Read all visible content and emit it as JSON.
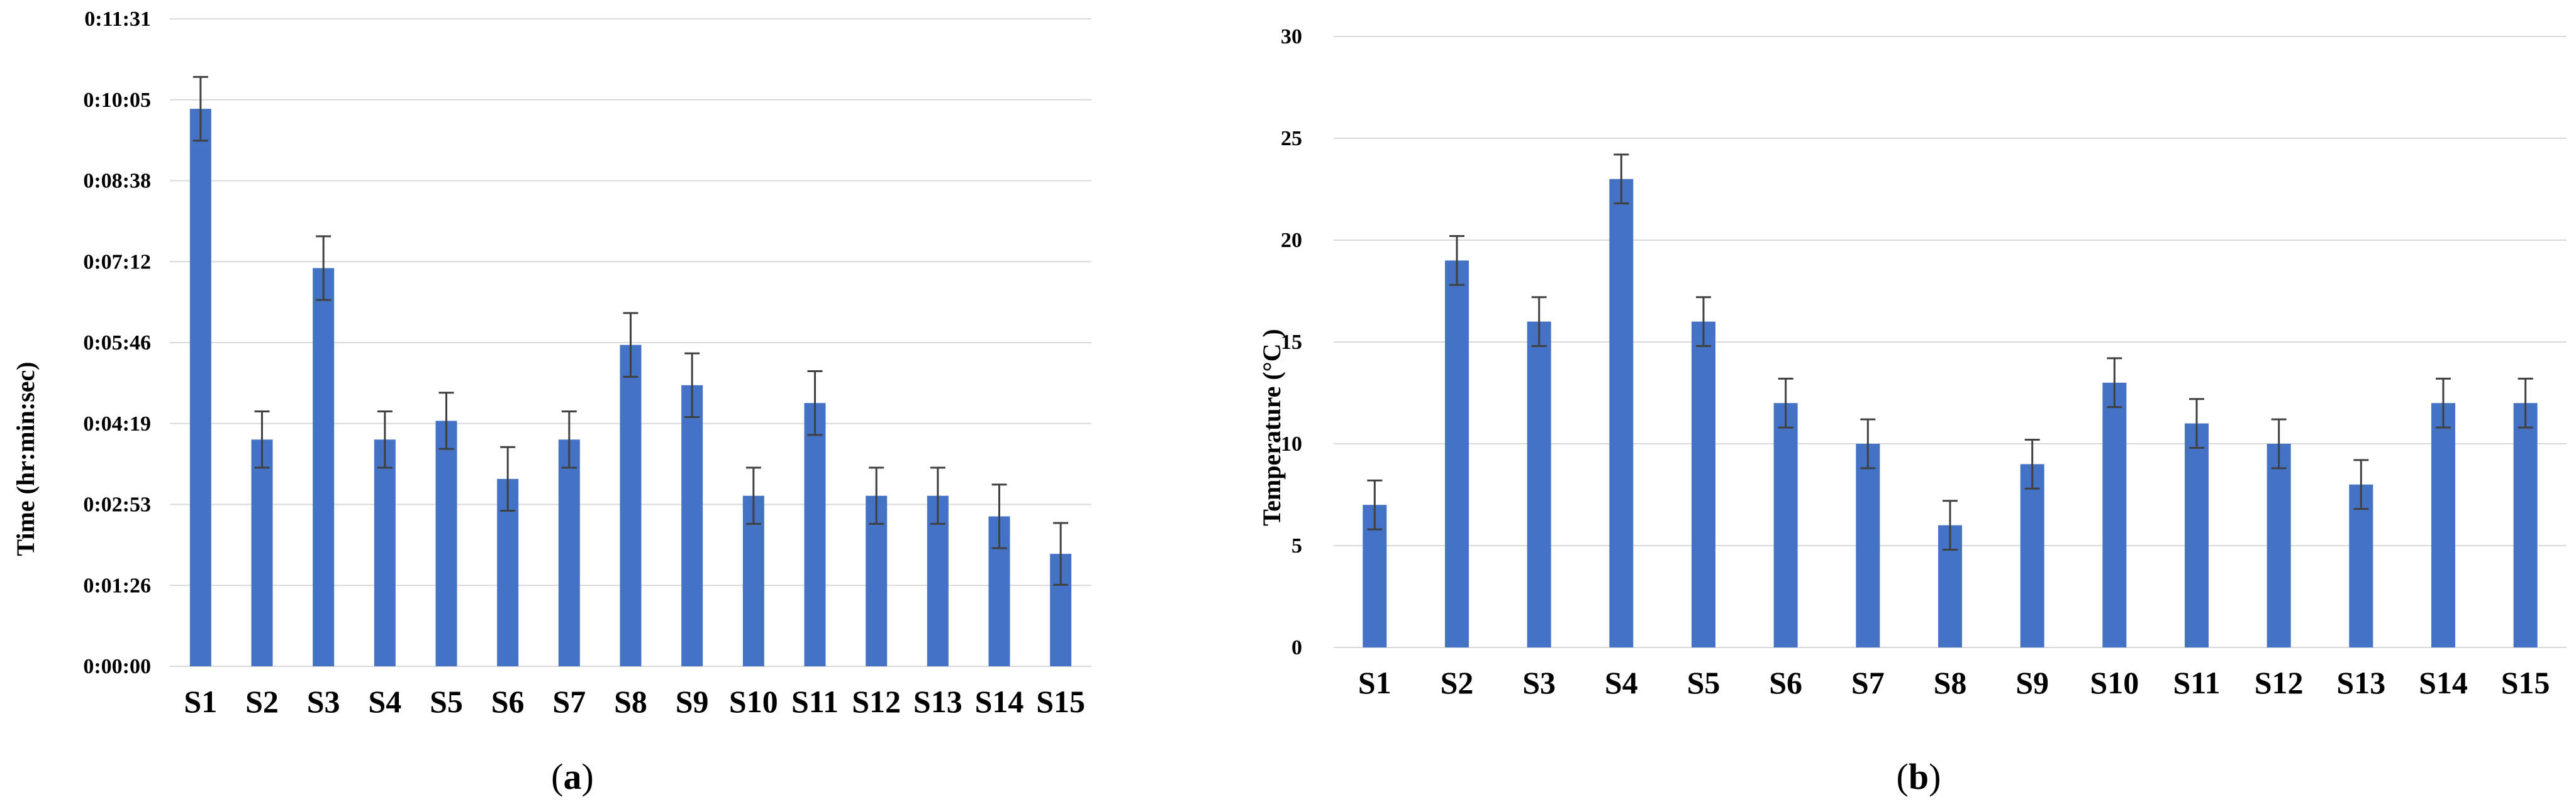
{
  "chart_data": [
    {
      "type": "bar",
      "panel": "a",
      "caption_letter": "a",
      "ylabel": "Time (hr:min:sec)",
      "y_tick_labels": [
        "0:00:00",
        "0:01:26",
        "0:02:53",
        "0:04:19",
        "0:05:46",
        "0:07:12",
        "0:08:38",
        "0:10:05",
        "0:11:31"
      ],
      "ylim_seconds": [
        0,
        691
      ],
      "categories": [
        "S1",
        "S2",
        "S3",
        "S4",
        "S5",
        "S6",
        "S7",
        "S8",
        "S9",
        "S10",
        "S11",
        "S12",
        "S13",
        "S14",
        "S15"
      ],
      "values_seconds": [
        595,
        242,
        425,
        242,
        262,
        200,
        242,
        343,
        300,
        182,
        281,
        182,
        182,
        160,
        120
      ],
      "error_seconds": [
        34,
        30,
        34,
        30,
        30,
        34,
        30,
        34,
        34,
        30,
        34,
        30,
        30,
        34,
        33
      ],
      "grid": true
    },
    {
      "type": "bar",
      "panel": "b",
      "caption_letter": "b",
      "ylabel": "Temperature (°C )",
      "y_tick_labels": [
        "0",
        "5",
        "10",
        "15",
        "20",
        "25",
        "30"
      ],
      "ylim": [
        0,
        30
      ],
      "categories": [
        "S1",
        "S2",
        "S3",
        "S4",
        "S5",
        "S6",
        "S7",
        "S8",
        "S9",
        "S10",
        "S11",
        "S12",
        "S13",
        "S14",
        "S15"
      ],
      "values": [
        7,
        19,
        16,
        23,
        16,
        12,
        10,
        6,
        9,
        13,
        11,
        10,
        8,
        12,
        12
      ],
      "error": [
        1.2,
        1.2,
        1.2,
        1.2,
        1.2,
        1.2,
        1.2,
        1.2,
        1.2,
        1.2,
        1.2,
        1.2,
        1.2,
        1.2,
        1.2
      ],
      "grid": true
    }
  ]
}
